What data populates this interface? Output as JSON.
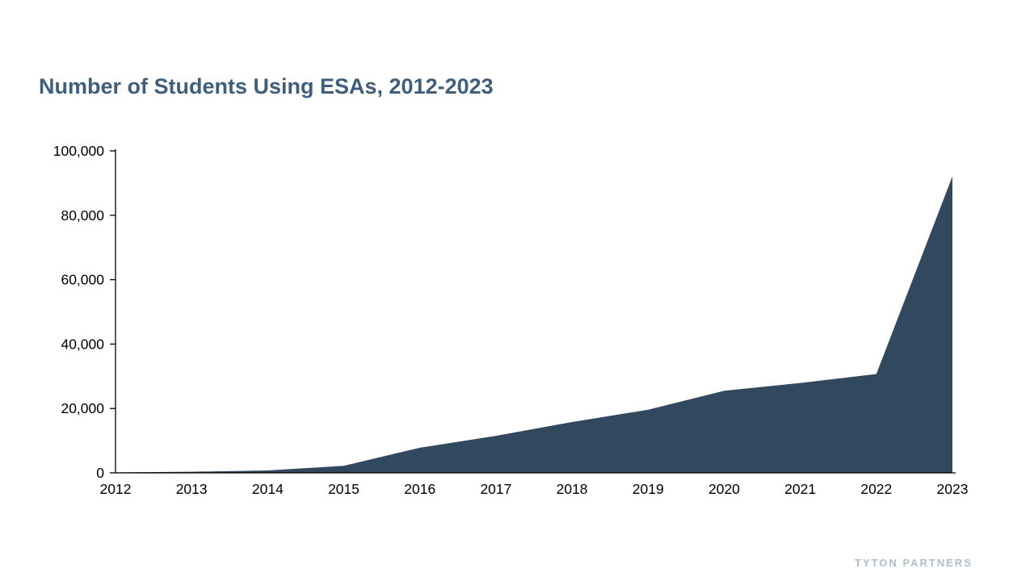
{
  "page": {
    "title": "Number of Students Using ESAs, 2012-2023",
    "background_color": "#ffffff"
  },
  "branding": {
    "logo_text": "TYTON PARTNERS",
    "logo_color": "#aebecb"
  },
  "chart_data": {
    "type": "area",
    "title": "Number of Students Using ESAs, 2012-2023",
    "series_name": "Number of Students Using ESAs",
    "categories": [
      "2012",
      "2013",
      "2014",
      "2015",
      "2016",
      "2017",
      "2018",
      "2019",
      "2020",
      "2021",
      "2022",
      "2023"
    ],
    "values": [
      150,
      350,
      750,
      2200,
      7800,
      11500,
      15800,
      19600,
      25500,
      27900,
      30700,
      92100
    ],
    "xlabel": "",
    "ylabel": "",
    "ylim": [
      0,
      100000
    ],
    "y_ticks": [
      0,
      20000,
      40000,
      60000,
      80000,
      100000
    ],
    "y_tick_labels": [
      "0",
      "20,000",
      "40,000",
      "60,000",
      "80,000",
      "100,000"
    ],
    "grid": false,
    "legend": false,
    "area_color": "#32485e",
    "axis_color": "#000000",
    "tick_label_color": "#000000",
    "title_color": "#3f5e7c"
  }
}
